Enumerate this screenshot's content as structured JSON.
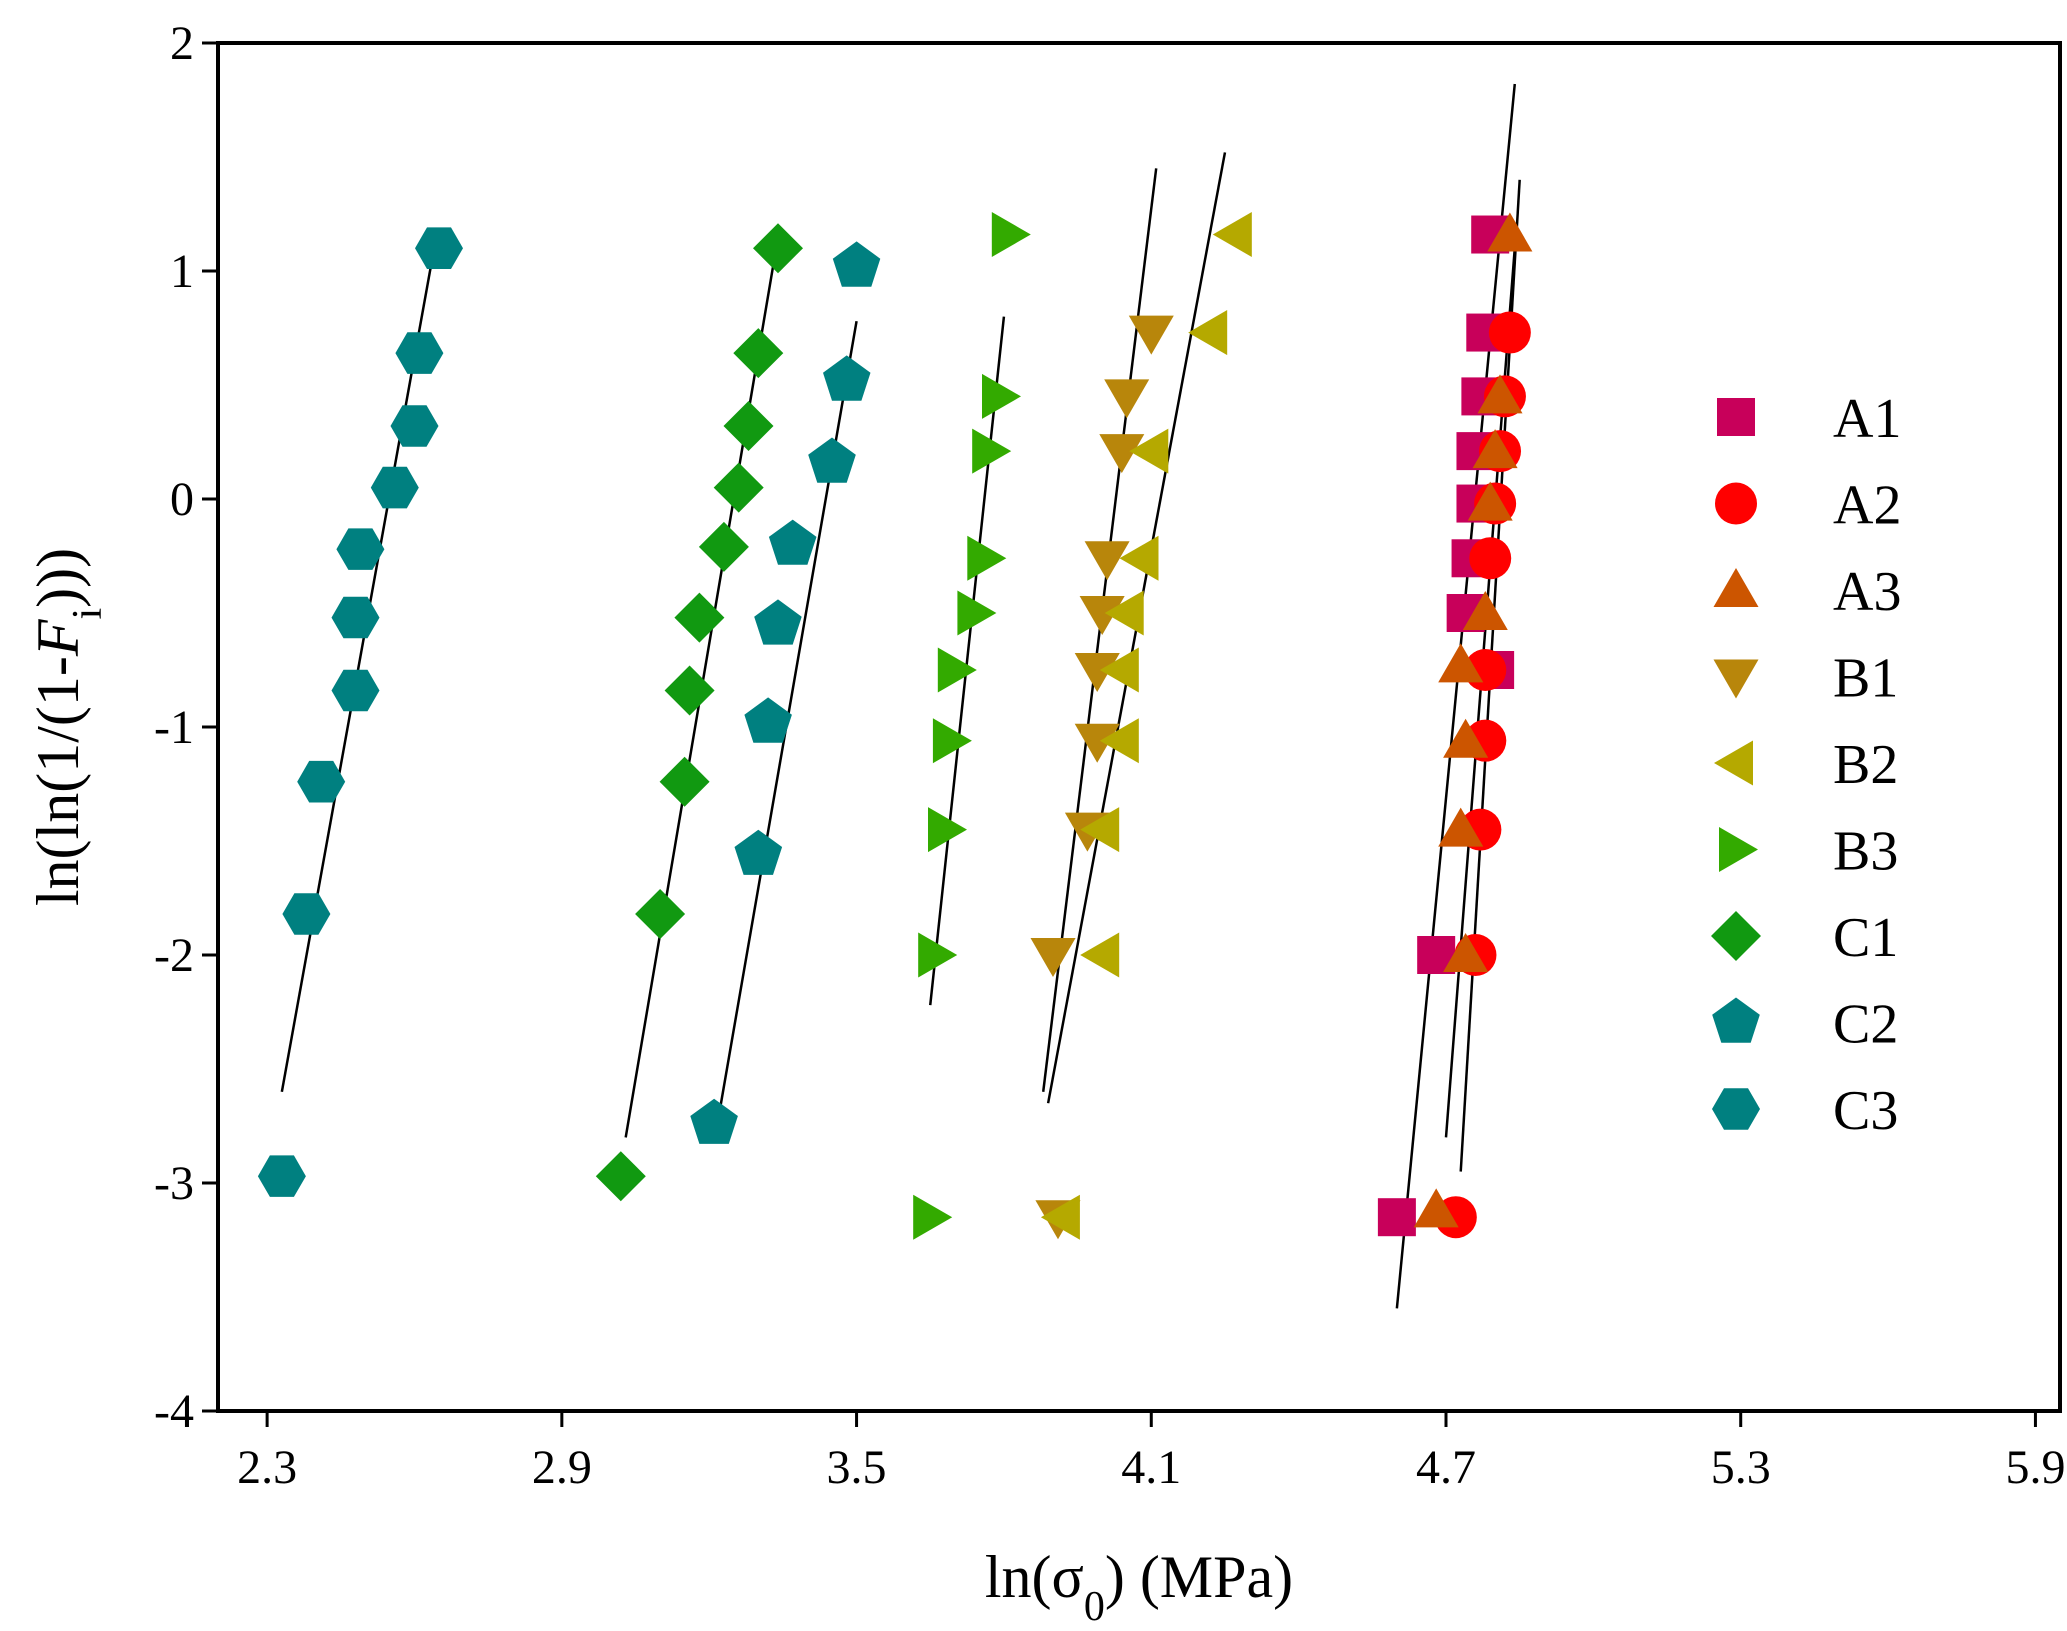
{
  "chart_data": {
    "type": "scatter",
    "title": "",
    "xlabel": "ln(σ0) (MPa)",
    "ylabel": "ln(ln(1/(1-Fi)))",
    "xlabel_parts": {
      "pre": "ln(σ",
      "sub": "0",
      "post": ") (MPa)"
    },
    "ylabel_parts": {
      "pre": "ln(ln(1/(1-",
      "italic": "F",
      "sub": "i",
      "post": ")))"
    },
    "xlim": [
      2.2,
      5.95
    ],
    "ylim": [
      -4,
      2
    ],
    "xticks": [
      2.3,
      2.9,
      3.5,
      4.1,
      4.7,
      5.3,
      5.9
    ],
    "xtick_labels": [
      "2.3",
      "2.9",
      "3.5",
      "4.1",
      "4.7",
      "5.3",
      "5.9"
    ],
    "yticks": [
      -4,
      -3,
      -2,
      -1,
      0,
      1,
      2
    ],
    "ytick_labels": [
      "-4",
      "-3",
      "-2",
      "-1",
      "0",
      "1",
      "2"
    ],
    "grid": false,
    "legend_position": "right",
    "series": [
      {
        "name": "A1",
        "marker": "square",
        "color": "#c8005a",
        "x": [
          4.6,
          4.68,
          4.74,
          4.75,
          4.76,
          4.76,
          4.77,
          4.78,
          4.79,
          4.8
        ],
        "y": [
          -3.15,
          -2.0,
          -0.5,
          -0.26,
          -0.02,
          0.21,
          0.45,
          0.73,
          1.16,
          -0.75
        ],
        "fit": [
          [
            4.6,
            -3.55
          ],
          [
            4.84,
            1.82
          ]
        ]
      },
      {
        "name": "A2",
        "marker": "circle",
        "color": "#ff0000",
        "x": [
          4.72,
          4.76,
          4.77,
          4.78,
          4.78,
          4.79,
          4.8,
          4.81,
          4.82,
          4.83
        ],
        "y": [
          -3.15,
          -2.0,
          -1.45,
          -1.06,
          -0.75,
          -0.26,
          -0.02,
          0.21,
          0.45,
          0.73
        ],
        "fit": [
          [
            4.73,
            -2.95
          ],
          [
            4.85,
            1.4
          ]
        ]
      },
      {
        "name": "A3",
        "marker": "triangle-up",
        "color": "#cc5500",
        "x": [
          4.68,
          4.74,
          4.73,
          4.74,
          4.73,
          4.78,
          4.79,
          4.8,
          4.81,
          4.83
        ],
        "y": [
          -3.12,
          -2.0,
          -1.45,
          -1.06,
          -0.73,
          -0.5,
          -0.02,
          0.21,
          0.45,
          1.16
        ],
        "fit": [
          [
            4.7,
            -2.8
          ],
          [
            4.84,
            1.1
          ]
        ]
      },
      {
        "name": "B1",
        "marker": "triangle-down",
        "color": "#b8860b",
        "x": [
          3.91,
          3.9,
          3.97,
          3.99,
          3.99,
          4.0,
          4.01,
          4.04,
          4.05,
          4.1
        ],
        "y": [
          -3.15,
          -2.0,
          -1.45,
          -1.06,
          -0.75,
          -0.5,
          -0.26,
          0.21,
          0.45,
          0.73
        ],
        "fit": [
          [
            3.88,
            -2.6
          ],
          [
            4.11,
            1.45
          ]
        ]
      },
      {
        "name": "B2",
        "marker": "triangle-left",
        "color": "#b5a900",
        "x": [
          3.92,
          4.0,
          4.0,
          4.04,
          4.04,
          4.05,
          4.08,
          4.1,
          4.22,
          4.27
        ],
        "y": [
          -3.15,
          -2.0,
          -1.45,
          -1.06,
          -0.75,
          -0.5,
          -0.26,
          0.21,
          0.73,
          1.16
        ],
        "fit": [
          [
            3.89,
            -2.65
          ],
          [
            4.25,
            1.52
          ]
        ]
      },
      {
        "name": "B3",
        "marker": "triangle-right",
        "color": "#33aa00",
        "x": [
          3.65,
          3.66,
          3.68,
          3.69,
          3.7,
          3.74,
          3.76,
          3.77,
          3.79,
          3.81
        ],
        "y": [
          -3.15,
          -2.0,
          -1.45,
          -1.06,
          -0.75,
          -0.5,
          -0.26,
          0.21,
          0.45,
          1.16
        ],
        "fit": [
          [
            3.65,
            -2.22
          ],
          [
            3.8,
            0.8
          ]
        ]
      },
      {
        "name": "C1",
        "marker": "diamond",
        "color": "#119911",
        "x": [
          3.02,
          3.1,
          3.15,
          3.16,
          3.18,
          3.23,
          3.26,
          3.28,
          3.3,
          3.34
        ],
        "y": [
          -2.97,
          -1.82,
          -1.24,
          -0.84,
          -0.52,
          -0.21,
          0.05,
          0.32,
          0.64,
          1.1
        ],
        "fit": [
          [
            3.03,
            -2.8
          ],
          [
            3.33,
            1.02
          ]
        ]
      },
      {
        "name": "C2",
        "marker": "pentagon",
        "color": "#008080",
        "x": [
          3.21,
          3.3,
          3.32,
          3.34,
          3.37,
          3.45,
          3.48,
          3.5
        ],
        "y": [
          -2.74,
          -1.56,
          -0.98,
          -0.55,
          -0.2,
          0.16,
          0.52,
          1.02
        ],
        "fit": [
          [
            3.22,
            -2.7
          ],
          [
            3.5,
            0.78
          ]
        ]
      },
      {
        "name": "C3",
        "marker": "hexagon",
        "color": "#008080",
        "x": [
          2.33,
          2.38,
          2.41,
          2.48,
          2.48,
          2.49,
          2.56,
          2.6,
          2.61,
          2.65
        ],
        "y": [
          -2.97,
          -1.82,
          -1.24,
          -0.84,
          -0.52,
          -0.22,
          0.05,
          0.32,
          0.64,
          1.1
        ],
        "fit": [
          [
            2.33,
            -2.6
          ],
          [
            2.64,
            1.1
          ]
        ]
      }
    ]
  }
}
